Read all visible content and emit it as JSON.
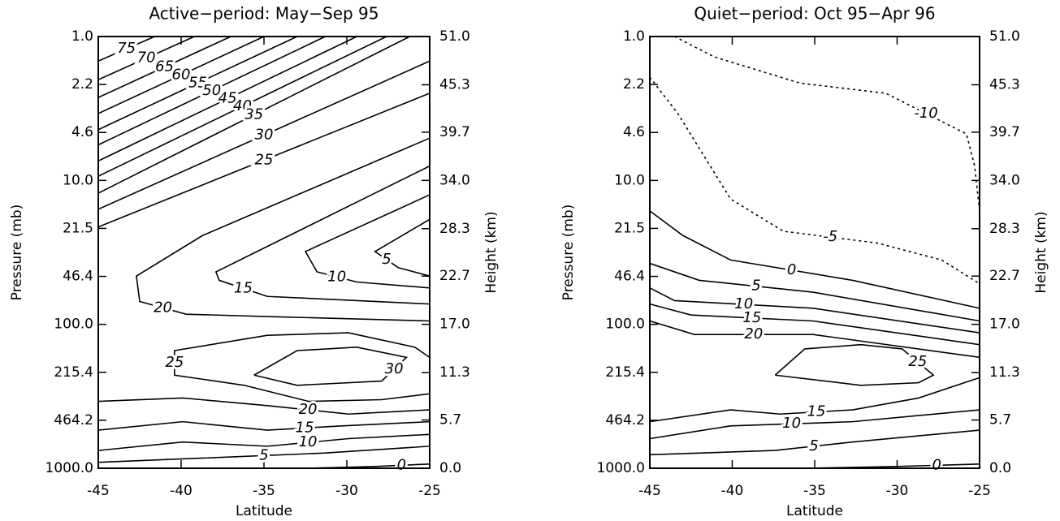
{
  "chart_data": [
    {
      "type": "contour",
      "title": "Active−period: May−Sep 95",
      "xlabel": "Latitude",
      "ylabel": "Pressure (mb)",
      "y2label": "Height (km)",
      "xlim": [
        -45,
        -25
      ],
      "xticks": [
        -45,
        -40,
        -35,
        -30,
        -25
      ],
      "ylim": [
        1000,
        1
      ],
      "ylog": true,
      "yticks": [
        {
          "value": 1,
          "label": "1.0"
        },
        {
          "value": 2.154,
          "label": "2.2"
        },
        {
          "value": 4.642,
          "label": "4.6"
        },
        {
          "value": 10,
          "label": "10.0"
        },
        {
          "value": 21.54,
          "label": "21.5"
        },
        {
          "value": 46.42,
          "label": "46.4"
        },
        {
          "value": 100,
          "label": "100.0"
        },
        {
          "value": 215.4,
          "label": "215.4"
        },
        {
          "value": 464.2,
          "label": "464.2"
        },
        {
          "value": 1000,
          "label": "1000.0"
        }
      ],
      "y2lim": [
        0,
        51
      ],
      "y2ticks": [
        {
          "value": 51,
          "label": "51.0"
        },
        45.3,
        39.7,
        {
          "value": 34,
          "label": "34.0"
        },
        28.3,
        22.7,
        {
          "value": 17,
          "label": "17.0"
        },
        11.3,
        5.7,
        {
          "value": 0,
          "label": "0.0"
        }
      ],
      "color": "#000000",
      "negative_linestyle": "dotted",
      "contours": [
        {
          "level": 75,
          "axis": "y2",
          "x": [
            -45,
            -41.6
          ],
          "y": [
            48.1,
            51.0
          ]
        },
        {
          "level": 70,
          "axis": "y2",
          "x": [
            -45,
            -39.2
          ],
          "y": [
            45.9,
            51.0
          ]
        },
        {
          "level": 65,
          "axis": "y2",
          "x": [
            -45,
            -37.0
          ],
          "y": [
            43.8,
            51.0
          ]
        },
        {
          "level": 60,
          "axis": "y2",
          "x": [
            -45,
            -35.0
          ],
          "y": [
            41.9,
            51.0
          ]
        },
        {
          "level": 55,
          "axis": "y2",
          "x": [
            -45,
            -33.0
          ],
          "y": [
            40.0,
            51.0
          ]
        },
        {
          "level": 50,
          "axis": "y2",
          "x": [
            -45,
            -31.3
          ],
          "y": [
            38.2,
            51.0
          ]
        },
        {
          "level": 45,
          "axis": "y2",
          "x": [
            -45,
            -29.4
          ],
          "y": [
            36.3,
            51.0
          ]
        },
        {
          "level": 40,
          "axis": "y2",
          "x": [
            -45,
            -27.6
          ],
          "y": [
            34.5,
            51.0
          ]
        },
        {
          "level": 35,
          "axis": "y2",
          "x": [
            -45,
            -26.2
          ],
          "y": [
            32.5,
            51.0
          ]
        },
        {
          "level": 30,
          "axis": "y2",
          "x": [
            -45,
            -25
          ],
          "y": [
            30.6,
            48.1
          ]
        },
        {
          "level": 25,
          "axis": "y2",
          "x": [
            -45,
            -25
          ],
          "y": [
            28.5,
            44.3
          ]
        },
        {
          "level": 20,
          "axis": "y2",
          "x": [
            -25,
            -38.7,
            -42.7,
            -42.5,
            -39.7,
            -34.4,
            -25
          ],
          "y": [
            39.0,
            27.5,
            22.7,
            19.7,
            18.2,
            17.9,
            17.4
          ]
        },
        {
          "level": 15,
          "axis": "y2",
          "x": [
            -25,
            -37.9,
            -37.7,
            -34.8,
            -25
          ],
          "y": [
            35.7,
            23.2,
            22.2,
            20.3,
            19.4
          ]
        },
        {
          "level": 10,
          "axis": "y2",
          "x": [
            -25,
            -32.5,
            -31.8,
            -29.4,
            -25
          ],
          "y": [
            32.3,
            25.6,
            23.2,
            22.0,
            21.3
          ]
        },
        {
          "level": 5,
          "axis": "y2",
          "x": [
            -25,
            -28.3,
            -26.9,
            -25
          ],
          "y": [
            29.4,
            25.6,
            23.7,
            22.7
          ]
        },
        {
          "level": 25,
          "axis": "y2",
          "x": [
            -25,
            -25.9,
            -29.9,
            -34.8,
            -40.4,
            -40.4,
            -36.2,
            -32.3,
            -27.9,
            -25
          ],
          "y": [
            13.1,
            14.3,
            16.0,
            15.7,
            13.9,
            11.0,
            9.8,
            7.9,
            8.1,
            8.8
          ]
        },
        {
          "level": 30,
          "axis": "y2",
          "x": [
            -35.6,
            -33.0,
            -29.4,
            -26.4,
            -27.9,
            -33.0,
            -35.6
          ],
          "y": [
            11.0,
            13.9,
            14.3,
            13.1,
            10.3,
            9.8,
            11.0
          ]
        },
        {
          "level": 20,
          "axis": "y2",
          "x": [
            -45,
            -39.9,
            -34.8,
            -29.9,
            -25
          ],
          "y": [
            7.9,
            8.3,
            7.4,
            6.4,
            6.9
          ]
        },
        {
          "level": 15,
          "axis": "y2",
          "x": [
            -45,
            -39.9,
            -34.8,
            -30.3,
            -25
          ],
          "y": [
            4.5,
            5.5,
            4.5,
            5.0,
            5.5
          ]
        },
        {
          "level": 10,
          "axis": "y2",
          "x": [
            -45,
            -39.9,
            -34.8,
            -29.9,
            -25
          ],
          "y": [
            2.1,
            3.1,
            2.6,
            3.5,
            4.0
          ]
        },
        {
          "level": 5,
          "axis": "y2",
          "x": [
            -45,
            -38.7,
            -31.3,
            -25
          ],
          "y": [
            0.7,
            1.2,
            1.8,
            2.6
          ]
        },
        {
          "level": 0,
          "axis": "y2",
          "x": [
            -32.3,
            -28.4,
            -25
          ],
          "y": [
            0,
            0.2,
            0.5
          ]
        }
      ]
    },
    {
      "type": "contour",
      "title": "Quiet−period: Oct 95−Apr 96",
      "xlabel": "Latitude",
      "ylabel": "Pressure (mb)",
      "y2label": "Height (km)",
      "xlim": [
        -45,
        -25
      ],
      "xticks": [
        -45,
        -40,
        -35,
        -30,
        -25
      ],
      "ylim": [
        1000,
        1
      ],
      "ylog": true,
      "yticks": [
        {
          "value": 1,
          "label": "1.0"
        },
        {
          "value": 2.154,
          "label": "2.2"
        },
        {
          "value": 4.642,
          "label": "4.6"
        },
        {
          "value": 10,
          "label": "10.0"
        },
        {
          "value": 21.54,
          "label": "21.5"
        },
        {
          "value": 46.42,
          "label": "46.4"
        },
        {
          "value": 100,
          "label": "100.0"
        },
        {
          "value": 215.4,
          "label": "215.4"
        },
        {
          "value": 464.2,
          "label": "464.2"
        },
        {
          "value": 1000,
          "label": "1000.0"
        }
      ],
      "y2lim": [
        0,
        51
      ],
      "y2ticks": [
        {
          "value": 51,
          "label": "51.0"
        },
        45.3,
        39.7,
        {
          "value": 34,
          "label": "34.0"
        },
        28.3,
        22.7,
        {
          "value": 17,
          "label": "17.0"
        },
        11.3,
        5.7,
        {
          "value": 0,
          "label": "0.0"
        }
      ],
      "color": "#000000",
      "negative_linestyle": "dotted",
      "contours": [
        {
          "level": -10,
          "axis": "y2",
          "x": [
            -43.5,
            -41.1,
            -35.9,
            -30.7,
            -25.8,
            -25.3,
            -25
          ],
          "y": [
            51.0,
            48.6,
            45.5,
            44.3,
            39.5,
            35.7,
            30.4
          ]
        },
        {
          "level": -5,
          "axis": "y2",
          "x": [
            -45,
            -43.3,
            -40.1,
            -36.9,
            -31.2,
            -27.3,
            -25
          ],
          "y": [
            46.2,
            41.9,
            31.8,
            28.0,
            26.6,
            24.6,
            21.8
          ]
        },
        {
          "level": 0,
          "axis": "y2",
          "x": [
            -45,
            -43.0,
            -40.1,
            -32.7,
            -25
          ],
          "y": [
            30.4,
            27.5,
            24.6,
            22.2,
            18.9
          ]
        },
        {
          "level": 5,
          "axis": "y2",
          "x": [
            -45,
            -42.0,
            -35.1,
            -25
          ],
          "y": [
            24.2,
            22.2,
            20.8,
            17.4
          ]
        },
        {
          "level": 10,
          "axis": "y2",
          "x": [
            -45,
            -43.5,
            -35.1,
            -25
          ],
          "y": [
            21.3,
            19.8,
            18.9,
            16.0
          ]
        },
        {
          "level": 15,
          "axis": "y2",
          "x": [
            -45,
            -42.5,
            -35.1,
            -25
          ],
          "y": [
            19.4,
            18.1,
            17.4,
            14.6
          ]
        },
        {
          "level": 20,
          "axis": "y2",
          "x": [
            -45,
            -42.3,
            -35.1,
            -25
          ],
          "y": [
            17.4,
            15.8,
            15.8,
            13.1
          ]
        },
        {
          "level": 25,
          "axis": "y2",
          "x": [
            -37.4,
            -35.6,
            -32.2,
            -29.7,
            -27.8,
            -28.7,
            -32.2,
            -37.4
          ],
          "y": [
            11.0,
            14.1,
            14.6,
            14.1,
            11.0,
            10.1,
            9.8,
            11.0
          ]
        },
        {
          "level": 15,
          "axis": "y2",
          "x": [
            -45,
            -40.1,
            -37.1,
            -32.7,
            -28.7,
            -25
          ],
          "y": [
            5.5,
            6.9,
            6.4,
            6.9,
            8.3,
            10.7
          ]
        },
        {
          "level": 10,
          "axis": "y2",
          "x": [
            -45,
            -40.1,
            -32.7,
            -25
          ],
          "y": [
            3.5,
            5.0,
            5.5,
            6.9
          ]
        },
        {
          "level": 5,
          "axis": "y2",
          "x": [
            -45,
            -37.4,
            -32.7,
            -25
          ],
          "y": [
            1.6,
            2.1,
            3.1,
            4.5
          ]
        },
        {
          "level": 0,
          "axis": "y2",
          "x": [
            -35.6,
            -30.2,
            -25
          ],
          "y": [
            0,
            0.2,
            0.5
          ]
        }
      ]
    }
  ]
}
